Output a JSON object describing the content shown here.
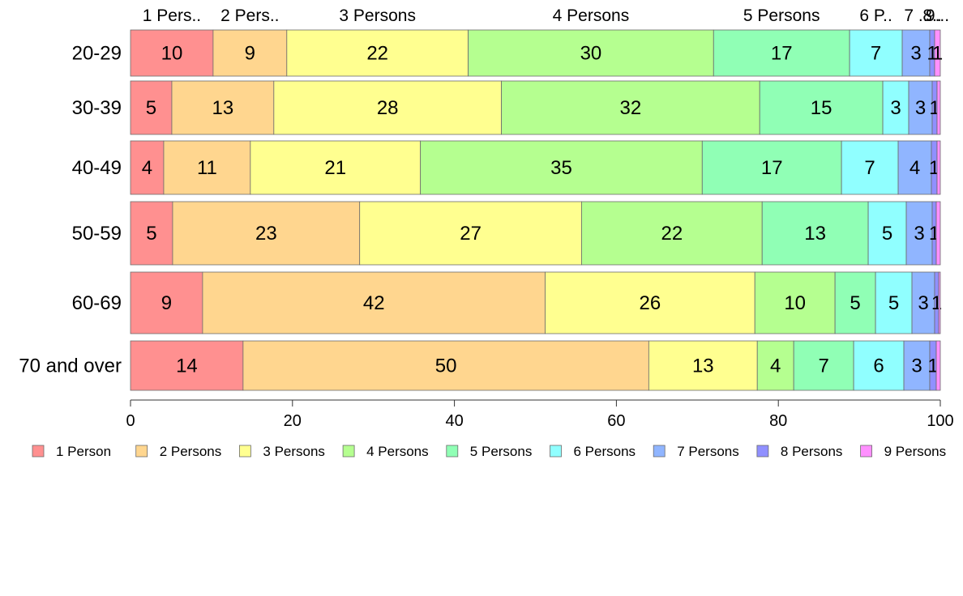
{
  "chart_data": {
    "type": "bar",
    "orientation": "horizontal",
    "stacked": true,
    "categories": [
      "20-29",
      "30-39",
      "40-49",
      "50-59",
      "60-69",
      "70 and over"
    ],
    "series": [
      {
        "name": "1 Person",
        "color": "#ff9090",
        "values": [
          10.2,
          5.1,
          4.1,
          5.2,
          8.9,
          13.9
        ]
      },
      {
        "name": "2 Persons",
        "color": "#ffd68f",
        "values": [
          9.1,
          12.6,
          10.7,
          23.1,
          42.3,
          50.1
        ]
      },
      {
        "name": "3 Persons",
        "color": "#ffff90",
        "values": [
          22.4,
          28.1,
          21.0,
          27.4,
          25.9,
          13.4
        ]
      },
      {
        "name": "4 Persons",
        "color": "#b5ff90",
        "values": [
          30.3,
          31.9,
          34.8,
          22.3,
          9.9,
          4.5
        ]
      },
      {
        "name": "5 Persons",
        "color": "#90ffb5",
        "values": [
          16.8,
          15.2,
          17.2,
          13.1,
          5.0,
          7.4
        ]
      },
      {
        "name": "6 Persons",
        "color": "#90ffff",
        "values": [
          6.5,
          3.2,
          7.0,
          4.7,
          4.5,
          6.2
        ]
      },
      {
        "name": "7 Persons",
        "color": "#90b5ff",
        "values": [
          3.4,
          2.9,
          4.1,
          3.2,
          2.8,
          3.2
        ]
      },
      {
        "name": "8 Persons",
        "color": "#9090ff",
        "values": [
          0.6,
          0.6,
          0.7,
          0.5,
          0.5,
          0.8
        ]
      },
      {
        "name": "9 Persons",
        "color": "#ff90ff",
        "values": [
          0.7,
          0.4,
          0.4,
          0.5,
          0.2,
          0.5
        ]
      }
    ],
    "data_labels": [
      [
        "10",
        "9",
        "22",
        "30",
        "17",
        "7",
        "3",
        "1",
        "1"
      ],
      [
        "5",
        "13",
        "28",
        "32",
        "15",
        "3",
        "3",
        "1",
        ""
      ],
      [
        "4",
        "11",
        "21",
        "35",
        "17",
        "7",
        "4",
        "1",
        ""
      ],
      [
        "5",
        "23",
        "27",
        "22",
        "13",
        "5",
        "3",
        "1",
        ""
      ],
      [
        "9",
        "42",
        "26",
        "10",
        "5",
        "5",
        "3",
        "1",
        ""
      ],
      [
        "14",
        "50",
        "13",
        "4",
        "7",
        "6",
        "3",
        "1",
        ""
      ]
    ],
    "top_labels": [
      "1 Pers..",
      "2 Pers..",
      "3 Persons",
      "4 Persons",
      "5 Persons",
      "6 P..",
      "7 ..",
      "8..",
      "9..."
    ],
    "x_ticks": [
      0,
      20,
      40,
      60,
      80,
      100
    ],
    "xlim": [
      0,
      100
    ],
    "title": "",
    "xlabel": "",
    "ylabel": "",
    "grid": false,
    "legend_position": "bottom"
  }
}
